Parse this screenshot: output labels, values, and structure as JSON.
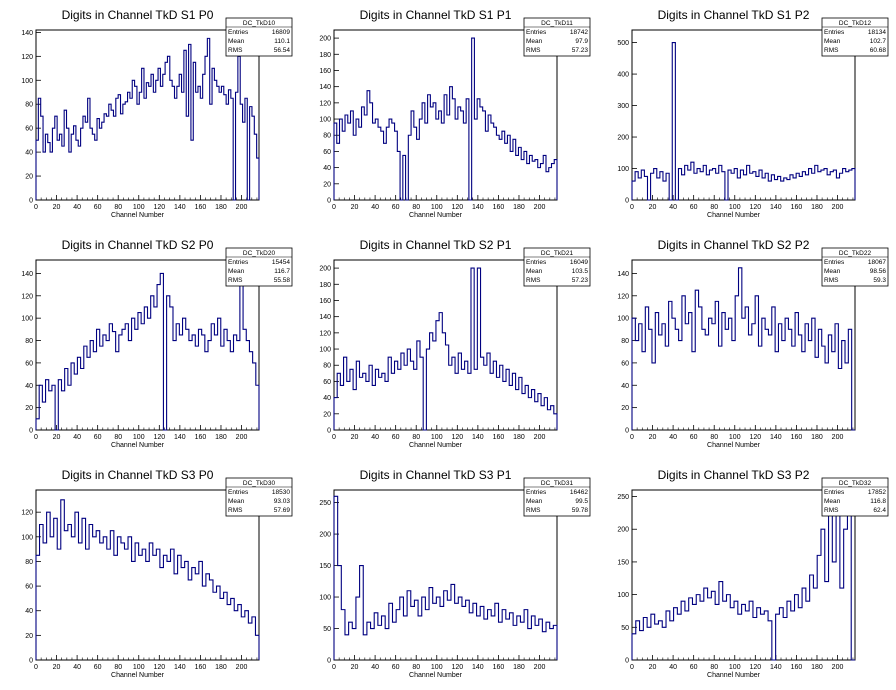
{
  "chart_data": [
    {
      "type": "line",
      "title": "Digits in Channel TkD S1 P0",
      "xlabel": "Channel Number",
      "ylabel": "",
      "xlim": [
        0,
        217
      ],
      "ylim": [
        0,
        142
      ],
      "xticks": [
        0,
        20,
        40,
        60,
        80,
        100,
        120,
        140,
        160,
        180,
        200
      ],
      "yticks": [
        0,
        20,
        40,
        60,
        80,
        100,
        120,
        140
      ],
      "stats": {
        "name": "DC_TkD10",
        "entries": "16809",
        "mean": "110.1",
        "rms": "56.54"
      },
      "series": [
        {
          "values": [
            50,
            85,
            70,
            40,
            55,
            48,
            40,
            60,
            70,
            50,
            55,
            45,
            75,
            60,
            40,
            55,
            62,
            50,
            45,
            60,
            70,
            65,
            85,
            60,
            55,
            50,
            68,
            60,
            65,
            72,
            70,
            80,
            75,
            70,
            85,
            88,
            72,
            80,
            82,
            90,
            85,
            100,
            95,
            80,
            90,
            110,
            85,
            98,
            95,
            105,
            90,
            100,
            110,
            95,
            105,
            115,
            120,
            100,
            95,
            85,
            95,
            105,
            90,
            125,
            70,
            130,
            50,
            115,
            90,
            95,
            85,
            105,
            120,
            135,
            80,
            110,
            100,
            95,
            90,
            95,
            88,
            80,
            92,
            85,
            0,
            90,
            120,
            80,
            65,
            85,
            0,
            78,
            70,
            55,
            35
          ]
        }
      ]
    },
    {
      "type": "line",
      "title": "Digits in Channel TkD S1 P1",
      "xlabel": "Channel Number",
      "ylabel": "",
      "xlim": [
        0,
        217
      ],
      "ylim": [
        0,
        210
      ],
      "xticks": [
        0,
        20,
        40,
        60,
        80,
        100,
        120,
        140,
        160,
        180,
        200
      ],
      "yticks": [
        0,
        20,
        40,
        60,
        80,
        100,
        120,
        140,
        160,
        180,
        200
      ],
      "stats": {
        "name": "DC_TkD11",
        "entries": "18742",
        "mean": "97.9",
        "rms": "57.23"
      },
      "series": [
        {
          "values": [
            95,
            70,
            100,
            85,
            105,
            95,
            110,
            80,
            100,
            90,
            115,
            105,
            135,
            120,
            95,
            100,
            90,
            85,
            70,
            90,
            100,
            95,
            85,
            60,
            0,
            55,
            0,
            80,
            110,
            90,
            75,
            100,
            120,
            95,
            130,
            115,
            120,
            100,
            110,
            95,
            130,
            105,
            140,
            125,
            100,
            115,
            110,
            95,
            125,
            0,
            200,
            100,
            125,
            115,
            110,
            85,
            105,
            95,
            90,
            80,
            75,
            85,
            70,
            80,
            60,
            75,
            55,
            65,
            50,
            60,
            45,
            55,
            48,
            50,
            40,
            45,
            55,
            35,
            40,
            45,
            50
          ]
        }
      ]
    },
    {
      "type": "line",
      "title": "Digits in Channel TkD S1 P2",
      "xlabel": "Channel Number",
      "ylabel": "",
      "xlim": [
        0,
        217
      ],
      "ylim": [
        0,
        540
      ],
      "xticks": [
        0,
        20,
        40,
        60,
        80,
        100,
        120,
        140,
        160,
        180,
        200
      ],
      "yticks": [
        0,
        100,
        200,
        300,
        400,
        500
      ],
      "stats": {
        "name": "DC_TkD12",
        "entries": "18134",
        "mean": "102.7",
        "rms": "60.68"
      },
      "series": [
        {
          "values": [
            60,
            90,
            70,
            95,
            75,
            0,
            85,
            100,
            70,
            90,
            60,
            85,
            0,
            500,
            0,
            100,
            80,
            110,
            95,
            120,
            85,
            100,
            90,
            110,
            80,
            95,
            100,
            85,
            110,
            90,
            0,
            95,
            85,
            100,
            70,
            95,
            80,
            110,
            85,
            90,
            75,
            95,
            70,
            85,
            60,
            80,
            65,
            75,
            60,
            70,
            65,
            80,
            70,
            85,
            75,
            90,
            80,
            100,
            85,
            110,
            90,
            95,
            100,
            80,
            90,
            95,
            70,
            85,
            100,
            90,
            95,
            100
          ]
        }
      ]
    },
    {
      "type": "line",
      "title": "Digits in Channel TkD S2 P0",
      "xlabel": "Channel Number",
      "ylabel": "",
      "xlim": [
        0,
        217
      ],
      "ylim": [
        0,
        152
      ],
      "xticks": [
        0,
        20,
        40,
        60,
        80,
        100,
        120,
        140,
        160,
        180,
        200
      ],
      "yticks": [
        0,
        20,
        40,
        60,
        80,
        100,
        120,
        140
      ],
      "stats": {
        "name": "DC_TkD20",
        "entries": "15454",
        "mean": "116.7",
        "rms": "55.58"
      },
      "series": [
        {
          "values": [
            10,
            40,
            25,
            45,
            35,
            40,
            0,
            45,
            35,
            55,
            40,
            60,
            50,
            65,
            55,
            75,
            65,
            80,
            70,
            90,
            75,
            85,
            80,
            95,
            88,
            70,
            85,
            90,
            95,
            80,
            100,
            90,
            105,
            95,
            110,
            100,
            120,
            110,
            130,
            140,
            0,
            120,
            110,
            80,
            95,
            85,
            100,
            90,
            80,
            85,
            75,
            90,
            85,
            70,
            80,
            95,
            85,
            100,
            75,
            90,
            80,
            70,
            85,
            80,
            140,
            90,
            80,
            70,
            60,
            40
          ]
        }
      ]
    },
    {
      "type": "line",
      "title": "Digits in Channel TkD S2 P1",
      "xlabel": "Channel Number",
      "ylabel": "",
      "xlim": [
        0,
        217
      ],
      "ylim": [
        0,
        210
      ],
      "xticks": [
        0,
        20,
        40,
        60,
        80,
        100,
        120,
        140,
        160,
        180,
        200
      ],
      "yticks": [
        0,
        20,
        40,
        60,
        80,
        100,
        120,
        140,
        160,
        180,
        200
      ],
      "stats": {
        "name": "DC_TkD21",
        "entries": "16049",
        "mean": "103.5",
        "rms": "57.23"
      },
      "series": [
        {
          "values": [
            40,
            70,
            55,
            90,
            60,
            75,
            50,
            85,
            65,
            70,
            60,
            80,
            55,
            75,
            65,
            70,
            60,
            90,
            70,
            85,
            75,
            95,
            80,
            100,
            85,
            75,
            110,
            90,
            0,
            100,
            120,
            110,
            135,
            145,
            120,
            105,
            80,
            90,
            70,
            95,
            75,
            85,
            70,
            200,
            75,
            200,
            90,
            80,
            95,
            70,
            85,
            65,
            80,
            60,
            75,
            55,
            70,
            50,
            65,
            45,
            55,
            40,
            50,
            35,
            45,
            30,
            40,
            25,
            30,
            20
          ]
        }
      ]
    },
    {
      "type": "line",
      "title": "Digits in Channel TkD S2 P2",
      "xlabel": "Channel Number",
      "ylabel": "",
      "xlim": [
        0,
        217
      ],
      "ylim": [
        0,
        152
      ],
      "xticks": [
        0,
        20,
        40,
        60,
        80,
        100,
        120,
        140,
        160,
        180,
        200
      ],
      "yticks": [
        0,
        20,
        40,
        60,
        80,
        100,
        120,
        140
      ],
      "stats": {
        "name": "DC_TkD22",
        "entries": "18067",
        "mean": "98.56",
        "rms": "59.3"
      },
      "series": [
        {
          "values": [
            100,
            80,
            95,
            70,
            110,
            90,
            60,
            105,
            85,
            95,
            75,
            115,
            100,
            90,
            80,
            120,
            95,
            105,
            70,
            125,
            110,
            90,
            85,
            100,
            95,
            115,
            75,
            105,
            90,
            100,
            80,
            120,
            145,
            100,
            110,
            85,
            95,
            120,
            75,
            100,
            90,
            85,
            110,
            70,
            95,
            80,
            100,
            90,
            75,
            105,
            85,
            70,
            95,
            80,
            100,
            65,
            90,
            75,
            60,
            85,
            70,
            95,
            55,
            80,
            60,
            90,
            0
          ]
        }
      ]
    },
    {
      "type": "line",
      "title": "Digits in Channel TkD S3 P0",
      "xlabel": "Channel Number",
      "ylabel": "",
      "xlim": [
        0,
        217
      ],
      "ylim": [
        0,
        138
      ],
      "xticks": [
        0,
        20,
        40,
        60,
        80,
        100,
        120,
        140,
        160,
        180,
        200
      ],
      "yticks": [
        0,
        20,
        40,
        60,
        80,
        100,
        120
      ],
      "stats": {
        "name": "DC_TkD30",
        "entries": "18530",
        "mean": "93.03",
        "rms": "57.69"
      },
      "series": [
        {
          "values": [
            85,
            110,
            95,
            120,
            100,
            115,
            90,
            130,
            105,
            110,
            100,
            120,
            95,
            115,
            90,
            110,
            100,
            105,
            95,
            100,
            90,
            105,
            85,
            100,
            95,
            90,
            100,
            80,
            95,
            85,
            90,
            80,
            95,
            85,
            90,
            75,
            85,
            80,
            90,
            70,
            85,
            75,
            80,
            65,
            75,
            70,
            80,
            60,
            70,
            65,
            55,
            60,
            50,
            55,
            45,
            50,
            40,
            45,
            35,
            40,
            30,
            35,
            20
          ]
        }
      ]
    },
    {
      "type": "line",
      "title": "Digits in Channel TkD S3 P1",
      "xlabel": "Channel Number",
      "ylabel": "",
      "xlim": [
        0,
        217
      ],
      "ylim": [
        0,
        270
      ],
      "xticks": [
        0,
        20,
        40,
        60,
        80,
        100,
        120,
        140,
        160,
        180,
        200
      ],
      "yticks": [
        0,
        50,
        100,
        150,
        200,
        250
      ],
      "stats": {
        "name": "DC_TkD31",
        "entries": "16462",
        "mean": "99.5",
        "rms": "59.78"
      },
      "series": [
        {
          "values": [
            260,
            150,
            80,
            40,
            60,
            50,
            100,
            150,
            40,
            60,
            50,
            75,
            55,
            70,
            50,
            90,
            60,
            80,
            100,
            70,
            110,
            85,
            95,
            70,
            100,
            80,
            115,
            90,
            100,
            85,
            110,
            95,
            120,
            90,
            100,
            85,
            95,
            75,
            90,
            70,
            85,
            65,
            80,
            70,
            90,
            60,
            80,
            65,
            75,
            55,
            70,
            60,
            80,
            50,
            70,
            55,
            65,
            45,
            60,
            50,
            55
          ]
        }
      ]
    },
    {
      "type": "line",
      "title": "Digits in Channel TkD S3 P2",
      "xlabel": "Channel Number",
      "ylabel": "",
      "xlim": [
        0,
        217
      ],
      "ylim": [
        0,
        260
      ],
      "xticks": [
        0,
        20,
        40,
        60,
        80,
        100,
        120,
        140,
        160,
        180,
        200
      ],
      "yticks": [
        0,
        50,
        100,
        150,
        200,
        250
      ],
      "stats": {
        "name": "DC_TkD32",
        "entries": "17852",
        "mean": "116.8",
        "rms": "62.4"
      },
      "series": [
        {
          "values": [
            40,
            60,
            45,
            65,
            50,
            70,
            55,
            60,
            50,
            75,
            60,
            80,
            70,
            90,
            75,
            95,
            85,
            100,
            90,
            110,
            95,
            105,
            85,
            120,
            90,
            100,
            80,
            90,
            70,
            85,
            75,
            90,
            65,
            80,
            70,
            75,
            60,
            0,
            70,
            80,
            65,
            90,
            75,
            100,
            80,
            110,
            90,
            130,
            110,
            160,
            200,
            120,
            230,
            150,
            240,
            110,
            200,
            250,
            0
          ]
        }
      ]
    }
  ]
}
